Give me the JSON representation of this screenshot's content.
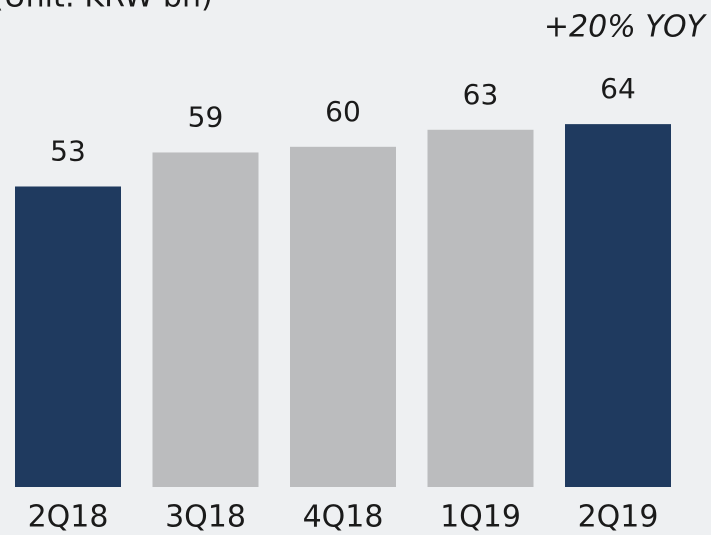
{
  "chart_data": {
    "type": "bar",
    "title": "(Unit: KRW bn)",
    "annotation": "+20% YOY",
    "categories": [
      "2Q18",
      "3Q18",
      "4Q18",
      "1Q19",
      "2Q19"
    ],
    "values": [
      53,
      59,
      60,
      63,
      64
    ],
    "colors": [
      "#1f3a5f",
      "#bbbcbe",
      "#bbbcbe",
      "#bbbcbe",
      "#1f3a5f"
    ],
    "annotation_color": "#ff0000"
  }
}
